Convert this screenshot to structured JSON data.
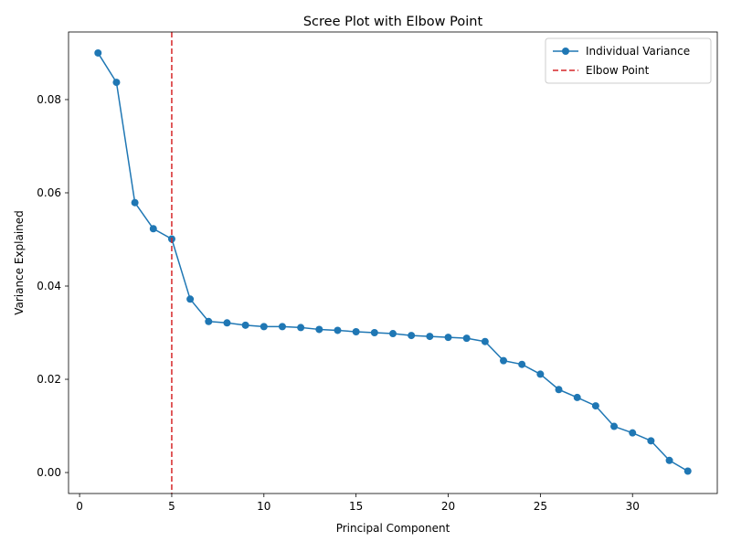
{
  "chart_data": {
    "type": "line",
    "title": "Scree Plot with Elbow Point",
    "xlabel": "Principal Component",
    "ylabel": "Variance Explained",
    "xlim": [
      -0.6,
      34.6
    ],
    "ylim": [
      -0.0045,
      0.0945
    ],
    "xticks": [
      0,
      5,
      10,
      15,
      20,
      25,
      30
    ],
    "xtick_labels": [
      "0",
      "5",
      "10",
      "15",
      "20",
      "25",
      "30"
    ],
    "yticks": [
      0.0,
      0.02,
      0.04,
      0.06,
      0.08
    ],
    "ytick_labels": [
      "0.00",
      "0.02",
      "0.04",
      "0.06",
      "0.08"
    ],
    "grid": false,
    "legend_position": "top-right",
    "series": [
      {
        "name": "Individual Variance",
        "color": "#1f77b4",
        "style": "solid line with circle markers",
        "x": [
          1,
          2,
          3,
          4,
          5,
          6,
          7,
          8,
          9,
          10,
          11,
          12,
          13,
          14,
          15,
          16,
          17,
          18,
          19,
          20,
          21,
          22,
          23,
          24,
          25,
          26,
          27,
          28,
          29,
          30,
          31,
          32,
          33
        ],
        "values": [
          0.09,
          0.0837,
          0.0579,
          0.0523,
          0.0501,
          0.0372,
          0.0324,
          0.0321,
          0.0316,
          0.0313,
          0.0313,
          0.0311,
          0.0307,
          0.0305,
          0.0302,
          0.03,
          0.0298,
          0.0294,
          0.0292,
          0.029,
          0.0288,
          0.0281,
          0.024,
          0.0232,
          0.0211,
          0.0178,
          0.0161,
          0.0143,
          0.0099,
          0.0085,
          0.0068,
          0.0026,
          0.0003
        ]
      }
    ],
    "reference_lines": [
      {
        "name": "Elbow Point",
        "orientation": "vertical",
        "x": 5,
        "color": "#d62728",
        "style": "dashed"
      }
    ]
  }
}
